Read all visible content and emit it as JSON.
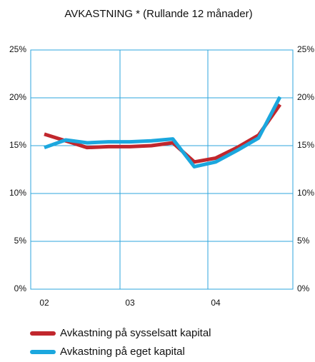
{
  "chart_data": {
    "type": "line",
    "title": "AVKASTNING * (Rullande 12 månader)",
    "categories": [
      "02",
      null,
      null,
      null,
      "03",
      null,
      null,
      null,
      "04",
      null,
      null,
      null
    ],
    "series": [
      {
        "name": "Avkastning på sysselsatt kapital",
        "color": "#c1272d",
        "values": [
          16.2,
          15.5,
          14.8,
          14.9,
          14.9,
          15.0,
          15.3,
          13.3,
          13.7,
          14.8,
          16.1,
          19.3
        ]
      },
      {
        "name": "Avkastning på eget kapital",
        "color": "#1ba7de",
        "values": [
          14.8,
          15.6,
          15.3,
          15.4,
          15.4,
          15.5,
          15.7,
          12.8,
          13.3,
          14.5,
          15.8,
          20.1
        ]
      }
    ],
    "ylim": [
      0,
      25
    ],
    "yticks": [
      {
        "value": 0,
        "label": "0%"
      },
      {
        "value": 5,
        "label": "5%"
      },
      {
        "value": 10,
        "label": "10%"
      },
      {
        "value": 15,
        "label": "15%"
      },
      {
        "value": 20,
        "label": "20%"
      },
      {
        "value": 25,
        "label": "25%"
      }
    ],
    "grid": true
  }
}
